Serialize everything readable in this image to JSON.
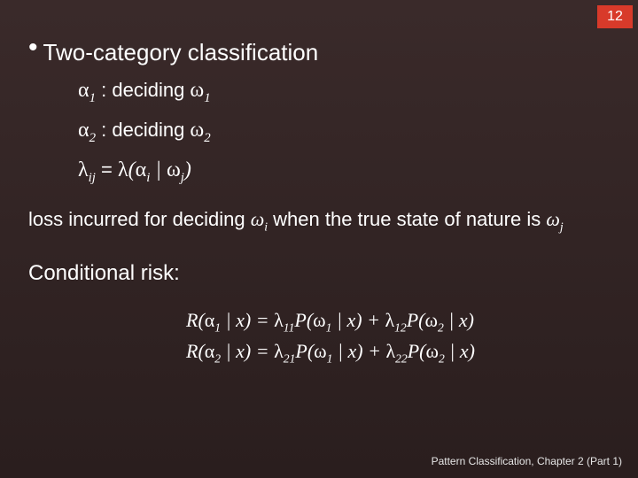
{
  "page_number": "12",
  "title": "Two-category classification",
  "lines": {
    "a1": "α",
    "a1_sub": "1",
    "a1_text": " : deciding ",
    "w": "ω",
    "w1_sub": "1",
    "a2_sub": "2",
    "w2_sub": "2",
    "lam": "λ",
    "ij_sub": "ij",
    "eq": " = ",
    "lp": "(",
    "bar": " | ",
    "rp": ")",
    "i_sub": "i",
    "j_sub": "j"
  },
  "loss_text_pre": "loss incurred for deciding ",
  "loss_text_mid": " when the true state of nature is ",
  "cond_risk_label": "Conditional risk:",
  "risk": {
    "R": "R(",
    "x_close": " | x) =  ",
    "P": "P(",
    "x_close2": " | x) + ",
    "x_close3": " | x)",
    "l11": "11",
    "l12": "12",
    "l21": "21",
    "l22": "22"
  },
  "footer": "Pattern Classification, Chapter 2 (Part 1)",
  "colors": {
    "badge_bg": "#d83a2a",
    "text": "#ffffff",
    "bg_top": "#3a2a2a",
    "bg_bottom": "#2a1e1e"
  }
}
